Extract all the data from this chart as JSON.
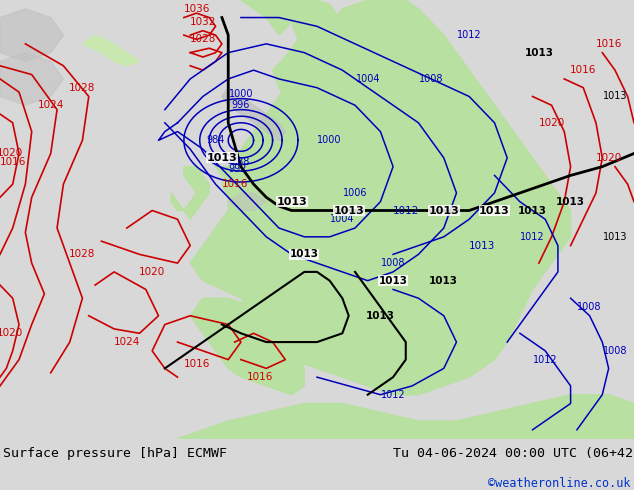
{
  "title_left": "Surface pressure [hPa] ECMWF",
  "title_right": "Tu 04-06-2024 00:00 UTC (06+42)",
  "credit": "©weatheronline.co.uk",
  "fig_width": 6.34,
  "fig_height": 4.9,
  "dpi": 100,
  "map_bg": "#f0f0f0",
  "land_green": "#b8e0a0",
  "land_green2": "#c8e8b0",
  "gray_land": "#c0c0c0",
  "footer_bg": "#d8d8d8",
  "ocean_bg": "#e8e8e8"
}
